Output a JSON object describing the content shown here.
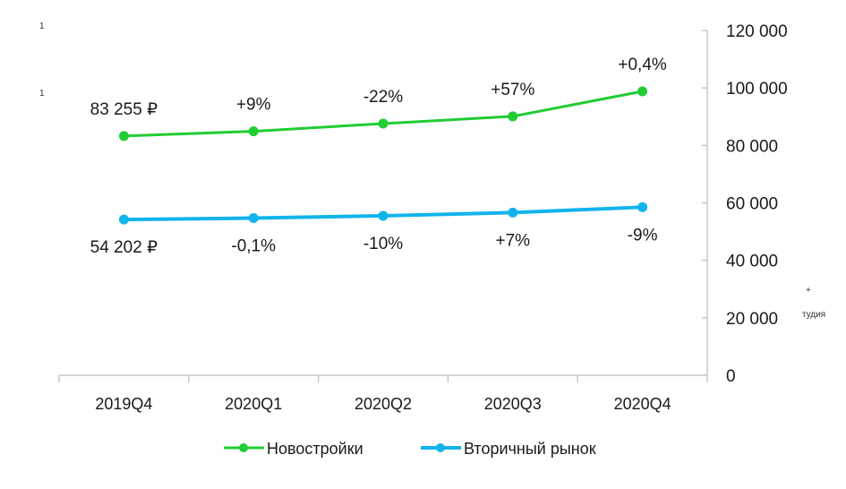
{
  "chart_data": {
    "type": "line",
    "title": "",
    "xlabel": "",
    "ylabel": "",
    "categories": [
      "2019Q4",
      "2020Q1",
      "2020Q2",
      "2020Q3",
      "2020Q4"
    ],
    "ylim": [
      0,
      120000
    ],
    "yticks": [
      0,
      20000,
      40000,
      60000,
      80000,
      100000,
      120000
    ],
    "ytick_labels": [
      "0",
      "20 000",
      "40 000",
      "60 000",
      "80 000",
      "100 000",
      "120 000"
    ],
    "y_axis_position": "right",
    "grid": false,
    "legend_position": "bottom",
    "series": [
      {
        "name": "Новостройки",
        "color": "#22cc33",
        "values": [
          83255,
          84900,
          87600,
          90100,
          98800
        ],
        "data_labels": [
          "83 255 ₽",
          "+9%",
          "-22%",
          "+57%",
          "+0,4%"
        ],
        "label_position": "above"
      },
      {
        "name": "Вторичный рынок",
        "color": "#11b4ec",
        "values": [
          54202,
          54700,
          55500,
          56600,
          58500
        ],
        "data_labels": [
          "54 202 ₽",
          "-0,1%",
          "-10%",
          "+7%",
          "-9%"
        ],
        "label_position": "below"
      }
    ],
    "stray_text": [
      "1",
      "1",
      "+",
      "тудия"
    ]
  }
}
